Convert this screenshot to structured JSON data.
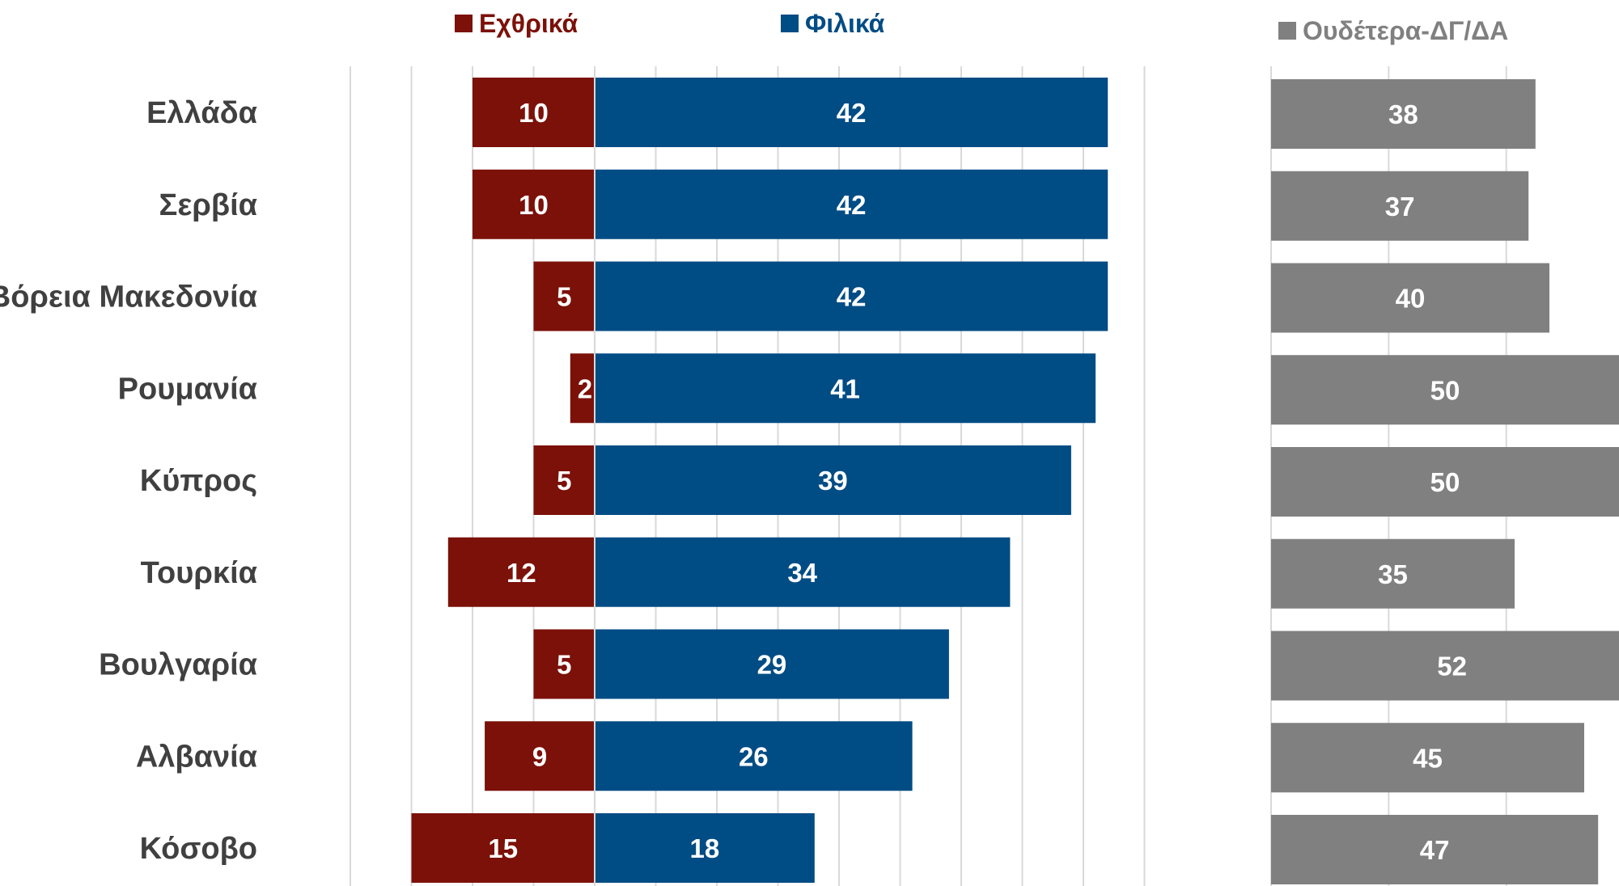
{
  "chart_data": {
    "type": "bar",
    "orientation": "horizontal",
    "categories": [
      "Ελλάδα",
      "Σερβία",
      "Βόρεια Μακεδονία",
      "Ρουμανία",
      "Κύπρος",
      "Τουρκία",
      "Βουλγαρία",
      "Αλβανία",
      "Κόσοβο"
    ],
    "series": [
      {
        "name": "Εχθρικά",
        "color": "#7B1109",
        "values": [
          10,
          10,
          5,
          2,
          5,
          12,
          5,
          9,
          15
        ]
      },
      {
        "name": "Φιλικά",
        "color": "#004C84",
        "values": [
          42,
          42,
          42,
          41,
          39,
          34,
          29,
          26,
          18
        ]
      },
      {
        "name": "Ουδέτερα-ΔΓ/ΔΑ",
        "color": "#808080",
        "values": [
          38,
          37,
          40,
          50,
          50,
          35,
          52,
          45,
          47
        ]
      }
    ],
    "legend": {
      "items": [
        "Εχθρικά",
        "Φιλικά",
        "Ουδέτερα-ΔΓ/ΔΑ"
      ],
      "placement": "top"
    },
    "grid": true,
    "axis_ticks_visible": false,
    "diverging": true
  }
}
